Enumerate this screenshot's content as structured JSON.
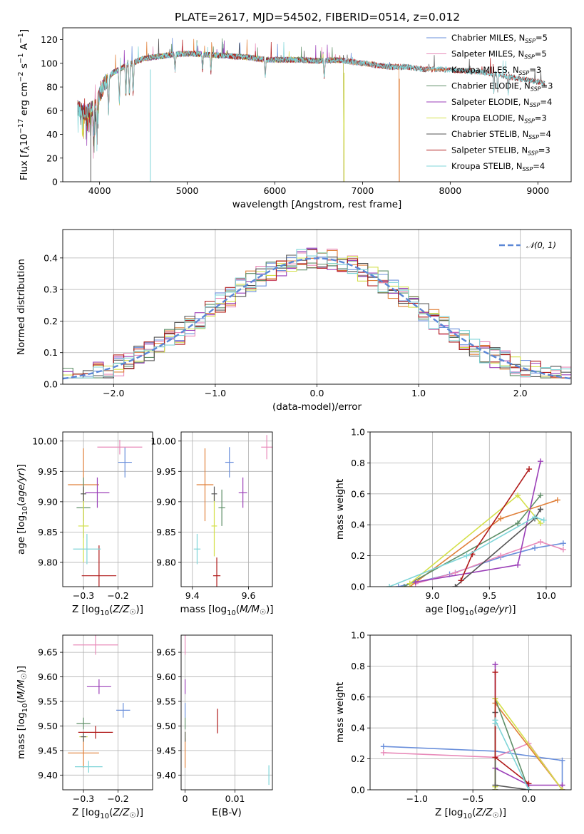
{
  "figure": {
    "title": "PLATE=2617, MJD=54502, FIBERID=0514, z=0.012"
  },
  "chart_data": [
    {
      "id": "spectrum",
      "type": "line",
      "title": "PLATE=2617, MJD=54502, FIBERID=0514, z=0.012",
      "xlabel": "wavelength [Angstrom, rest frame]",
      "ylabel": "Flux [fλ10⁻¹⁷ erg cm⁻² s⁻¹ A⁻¹]",
      "xlim": [
        3580,
        9380
      ],
      "ylim": [
        0,
        130
      ],
      "xticks": [
        4000,
        5000,
        6000,
        7000,
        8000,
        9000
      ],
      "yticks": [
        0,
        20,
        40,
        60,
        80,
        100,
        120
      ],
      "grid": false,
      "legend_position": "top-right",
      "continuum": {
        "x": [
          3750,
          3850,
          3950,
          4050,
          4150,
          4300,
          4500,
          4700,
          4900,
          5100,
          5300,
          5500,
          5700,
          5900,
          6100,
          6300,
          6500,
          6700,
          6900,
          7100,
          7300,
          7500,
          7700,
          7900,
          8100,
          8300,
          8500,
          8700,
          8900,
          9080
        ],
        "y": [
          62,
          58,
          64,
          82,
          92,
          98,
          104,
          106,
          108,
          108,
          107,
          106,
          105,
          103,
          103,
          103,
          102,
          103,
          101,
          99,
          97,
          97,
          95,
          95,
          94,
          93,
          91,
          88,
          86,
          83
        ]
      },
      "series": [
        {
          "name": "Chabrier MILES, N$_{SSP}$=5",
          "color": "#6a8fdb",
          "xmax": 7400,
          "drop_x": null
        },
        {
          "name": "Salpeter MILES, N$_{SSP}$=5",
          "color": "#e88ab9",
          "xmax": 7400,
          "drop_x": null
        },
        {
          "name": "Kroupa MILES, N$_{SSP}$=3",
          "color": "#e0803a",
          "xmax": 7420,
          "drop_x": 7415
        },
        {
          "name": "Chabrier ELODIE, N$_{SSP}$=3",
          "color": "#5f8f68",
          "xmax": 6790,
          "drop_x": 6785
        },
        {
          "name": "Salpeter ELODIE, N$_{SSP}$=4",
          "color": "#9b3fb8",
          "xmax": 6790,
          "drop_x": 6785
        },
        {
          "name": "Kroupa ELODIE, N$_{SSP}$=3",
          "color": "#d4e04a",
          "xmax": 6790,
          "drop_x": 6785
        },
        {
          "name": "Chabrier STELIB, N$_{SSP}$=4",
          "color": "#555555",
          "xmax": 9080,
          "drop_x": null
        },
        {
          "name": "Salpeter STELIB, N$_{SSP}$=3",
          "color": "#b01a1a",
          "xmax": 9080,
          "drop_x": null
        },
        {
          "name": "Kroupa STELIB, N$_{SSP}$=4",
          "color": "#7fd5d8",
          "xmax": 9080,
          "drop_x": null
        }
      ],
      "drops_to_zero_at": [
        3900,
        4580,
        6790,
        7420
      ]
    },
    {
      "id": "residuals",
      "type": "histogram",
      "xlabel": "(data-model)/error",
      "ylabel": "Normed distribution",
      "xlim": [
        -2.5,
        2.5
      ],
      "ylim": [
        0,
        0.49
      ],
      "xticks": [
        -2,
        -1,
        0,
        1,
        2
      ],
      "yticks": [
        0.0,
        0.1,
        0.2,
        0.3,
        0.4
      ],
      "grid": true,
      "legend": "N(0,1)",
      "legend_position": "top-right",
      "reference": {
        "name": "N(0,1)",
        "mean": 0,
        "sigma": 1,
        "color": "#5b87d6",
        "style": "dashed"
      },
      "series_colors": [
        "#6a8fdb",
        "#e88ab9",
        "#e0803a",
        "#5f8f68",
        "#9b3fb8",
        "#d4e04a",
        "#555555",
        "#b01a1a",
        "#7fd5d8"
      ]
    },
    {
      "id": "age_vs_Z",
      "type": "scatter",
      "xlabel": "Z [log10(Z/Z☉)]",
      "ylabel": "age  [log10(age/yr)]",
      "xlim": [
        -0.36,
        -0.1
      ],
      "ylim": [
        9.76,
        10.015
      ],
      "xticks": [
        -0.3,
        -0.2
      ],
      "yticks": [
        9.8,
        9.85,
        9.9,
        9.95,
        10.0
      ],
      "grid": true,
      "points": [
        {
          "x": -0.18,
          "y": 9.965,
          "xerr": 0.02,
          "yerr": 0.025,
          "color": "#6a8fdb"
        },
        {
          "x": -0.195,
          "y": 9.99,
          "xerr": 0.065,
          "yerr": 0.012,
          "color": "#e88ab9"
        },
        {
          "x": -0.3,
          "y": 9.928,
          "xerr": 0.045,
          "yerr": 0.06,
          "color": "#e0803a"
        },
        {
          "x": -0.3,
          "y": 9.89,
          "xerr": 0.02,
          "yerr": 0.05,
          "color": "#5f8f68"
        },
        {
          "x": -0.26,
          "y": 9.915,
          "xerr": 0.035,
          "yerr": 0.025,
          "color": "#9b3fb8"
        },
        {
          "x": -0.3,
          "y": 9.86,
          "xerr": 0.015,
          "yerr": 0.06,
          "color": "#d4e04a"
        },
        {
          "x": -0.3,
          "y": 9.913,
          "xerr": 0.008,
          "yerr": 0.012,
          "color": "#555555"
        },
        {
          "x": -0.255,
          "y": 9.778,
          "xerr": 0.05,
          "yerr": 0.05,
          "color": "#b01a1a"
        },
        {
          "x": -0.29,
          "y": 9.822,
          "xerr": 0.04,
          "yerr": 0.025,
          "color": "#7fd5d8"
        }
      ]
    },
    {
      "id": "age_vs_mass",
      "type": "scatter",
      "xlabel": "mass [log10(M/M☉)]",
      "ylabel": "",
      "xlim": [
        9.36,
        9.685
      ],
      "ylim": [
        9.76,
        10.015
      ],
      "xticks": [
        9.4,
        9.6
      ],
      "yticks": [
        9.8,
        9.85,
        9.9,
        9.95,
        10.0
      ],
      "grid": true,
      "points": [
        {
          "x": 9.532,
          "y": 9.965,
          "xerr": 0.015,
          "yerr": 0.025,
          "color": "#6a8fdb"
        },
        {
          "x": 9.665,
          "y": 9.99,
          "xerr": 0.02,
          "yerr": 0.02,
          "color": "#e88ab9"
        },
        {
          "x": 9.445,
          "y": 9.928,
          "xerr": 0.03,
          "yerr": 0.06,
          "color": "#e0803a"
        },
        {
          "x": 9.505,
          "y": 9.89,
          "xerr": 0.012,
          "yerr": 0.03,
          "color": "#5f8f68"
        },
        {
          "x": 9.58,
          "y": 9.915,
          "xerr": 0.015,
          "yerr": 0.025,
          "color": "#9b3fb8"
        },
        {
          "x": 9.478,
          "y": 9.86,
          "xerr": 0.01,
          "yerr": 0.05,
          "color": "#d4e04a"
        },
        {
          "x": 9.478,
          "y": 9.913,
          "xerr": 0.01,
          "yerr": 0.012,
          "color": "#555555"
        },
        {
          "x": 9.487,
          "y": 9.778,
          "xerr": 0.013,
          "yerr": 0.03,
          "color": "#b01a1a"
        },
        {
          "x": 9.417,
          "y": 9.822,
          "xerr": 0.012,
          "yerr": 0.025,
          "color": "#7fd5d8"
        }
      ]
    },
    {
      "id": "weight_vs_age",
      "type": "line",
      "xlabel": "age  [log10(age/yr)]",
      "ylabel": "mass weight",
      "xlim": [
        8.45,
        10.22
      ],
      "ylim": [
        0,
        1.0
      ],
      "xticks": [
        9.0,
        9.5,
        10.0
      ],
      "yticks": [
        0.0,
        0.2,
        0.4,
        0.6,
        0.8,
        1.0
      ],
      "grid": true,
      "series": [
        {
          "color": "#6a8fdb",
          "x": [
            8.7,
            9.15,
            9.6,
            9.9,
            10.15
          ],
          "y": [
            0.0,
            0.08,
            0.19,
            0.25,
            0.28
          ]
        },
        {
          "color": "#e88ab9",
          "x": [
            8.85,
            9.2,
            9.6,
            9.95,
            10.15
          ],
          "y": [
            0.02,
            0.09,
            0.2,
            0.29,
            0.24
          ]
        },
        {
          "color": "#e0803a",
          "x": [
            8.8,
            9.6,
            10.1
          ],
          "y": [
            0.0,
            0.44,
            0.56
          ]
        },
        {
          "color": "#5f8f68",
          "x": [
            8.75,
            9.75,
            9.95
          ],
          "y": [
            0.0,
            0.41,
            0.59
          ]
        },
        {
          "color": "#9b3fb8",
          "x": [
            8.85,
            9.75,
            9.95
          ],
          "y": [
            0.03,
            0.14,
            0.81
          ]
        },
        {
          "color": "#d4e04a",
          "x": [
            8.8,
            9.75,
            9.95
          ],
          "y": [
            0.02,
            0.59,
            0.41
          ]
        },
        {
          "color": "#555555",
          "x": [
            9.2,
            9.9,
            9.95,
            9.95
          ],
          "y": [
            0.0,
            0.44,
            0.5,
            0.5
          ]
        },
        {
          "color": "#b01a1a",
          "x": [
            9.25,
            9.35,
            9.85
          ],
          "y": [
            0.04,
            0.21,
            0.76
          ]
        },
        {
          "color": "#7fd5d8",
          "x": [
            8.62,
            9.3,
            9.9,
            9.98
          ],
          "y": [
            0.0,
            0.2,
            0.45,
            0.43
          ]
        }
      ]
    },
    {
      "id": "mass_vs_Z",
      "type": "scatter",
      "xlabel": "Z [log10(Z/Z☉)]",
      "ylabel": "mass [log10(M/M☉)]",
      "xlim": [
        -0.36,
        -0.1
      ],
      "ylim": [
        9.37,
        9.685
      ],
      "xticks": [
        -0.3,
        -0.2
      ],
      "yticks": [
        9.4,
        9.45,
        9.5,
        9.55,
        9.6,
        9.65
      ],
      "grid": true,
      "points": [
        {
          "x": -0.185,
          "y": 9.532,
          "xerr": 0.02,
          "yerr": 0.015,
          "color": "#6a8fdb"
        },
        {
          "x": -0.265,
          "y": 9.665,
          "xerr": 0.065,
          "yerr": 0.02,
          "color": "#e88ab9"
        },
        {
          "x": -0.3,
          "y": 9.445,
          "xerr": 0.045,
          "yerr": 0.03,
          "color": "#e0803a"
        },
        {
          "x": -0.3,
          "y": 9.505,
          "xerr": 0.02,
          "yerr": 0.012,
          "color": "#5f8f68"
        },
        {
          "x": -0.255,
          "y": 9.58,
          "xerr": 0.035,
          "yerr": 0.015,
          "color": "#9b3fb8"
        },
        {
          "x": -0.3,
          "y": 9.478,
          "xerr": 0.012,
          "yerr": 0.01,
          "color": "#d4e04a"
        },
        {
          "x": -0.3,
          "y": 9.478,
          "xerr": 0.008,
          "yerr": 0.01,
          "color": "#555555"
        },
        {
          "x": -0.265,
          "y": 9.487,
          "xerr": 0.05,
          "yerr": 0.013,
          "color": "#b01a1a"
        },
        {
          "x": -0.285,
          "y": 9.417,
          "xerr": 0.04,
          "yerr": 0.012,
          "color": "#7fd5d8"
        }
      ]
    },
    {
      "id": "mass_vs_EBV",
      "type": "scatter",
      "xlabel": "E(B-V)",
      "ylabel": "",
      "xlim": [
        -0.0008,
        0.0175
      ],
      "ylim": [
        9.37,
        9.685
      ],
      "xticks": [
        0.0,
        0.01
      ],
      "yticks": [
        9.4,
        9.45,
        9.5,
        9.55,
        9.6,
        9.65
      ],
      "grid": true,
      "points": [
        {
          "x": 0.0,
          "y": 9.532,
          "xerr": 0.0,
          "yerr": 0.015,
          "color": "#6a8fdb"
        },
        {
          "x": 0.0,
          "y": 9.665,
          "xerr": 0.0,
          "yerr": 0.02,
          "color": "#e88ab9"
        },
        {
          "x": 0.0,
          "y": 9.445,
          "xerr": 0.0,
          "yerr": 0.03,
          "color": "#e0803a"
        },
        {
          "x": 0.0,
          "y": 9.505,
          "xerr": 0.0,
          "yerr": 0.012,
          "color": "#5f8f68"
        },
        {
          "x": 0.0,
          "y": 9.58,
          "xerr": 0.0,
          "yerr": 0.015,
          "color": "#9b3fb8"
        },
        {
          "x": 0.0,
          "y": 9.478,
          "xerr": 0.0,
          "yerr": 0.01,
          "color": "#d4e04a"
        },
        {
          "x": 0.0,
          "y": 9.478,
          "xerr": 0.0,
          "yerr": 0.01,
          "color": "#555555"
        },
        {
          "x": 0.0065,
          "y": 9.51,
          "xerr": 0.0,
          "yerr": 0.025,
          "color": "#b01a1a"
        },
        {
          "x": 0.0168,
          "y": 9.4,
          "xerr": 0.0,
          "yerr": 0.02,
          "color": "#7fd5d8"
        }
      ]
    },
    {
      "id": "weight_vs_Z",
      "type": "line",
      "xlabel": "Z [log10(Z/Z☉)]",
      "ylabel": "mass weight",
      "xlim": [
        -1.42,
        0.38
      ],
      "ylim": [
        0,
        1.0
      ],
      "xticks": [
        -1.0,
        -0.5,
        0.0
      ],
      "yticks": [
        0.0,
        0.2,
        0.4,
        0.6,
        0.8,
        1.0
      ],
      "grid": true,
      "series": [
        {
          "color": "#6a8fdb",
          "x": [
            -1.3,
            -0.3,
            0.3,
            0.3
          ],
          "y": [
            0.28,
            0.25,
            0.19,
            0.0
          ]
        },
        {
          "color": "#e88ab9",
          "x": [
            -1.3,
            -0.3,
            0.0,
            0.3
          ],
          "y": [
            0.24,
            0.21,
            0.3,
            0.0
          ]
        },
        {
          "color": "#e0803a",
          "x": [
            -0.3,
            -0.3,
            0.3
          ],
          "y": [
            0.0,
            0.56,
            0.0
          ]
        },
        {
          "color": "#5f8f68",
          "x": [
            -0.3,
            -0.3,
            0.0
          ],
          "y": [
            0.0,
            0.59,
            0.0
          ]
        },
        {
          "color": "#9b3fb8",
          "x": [
            -0.3,
            -0.3,
            0.0,
            0.3,
            0.3
          ],
          "y": [
            0.81,
            0.14,
            0.03,
            0.03,
            0.0
          ]
        },
        {
          "color": "#d4e04a",
          "x": [
            -0.3,
            -0.3,
            0.3
          ],
          "y": [
            0.02,
            0.59,
            0.0
          ]
        },
        {
          "color": "#555555",
          "x": [
            -0.3,
            -0.3,
            0.0,
            0.0
          ],
          "y": [
            0.5,
            0.03,
            0.0,
            0.0
          ]
        },
        {
          "color": "#b01a1a",
          "x": [
            -0.3,
            -0.3,
            0.0
          ],
          "y": [
            0.76,
            0.21,
            0.04
          ]
        },
        {
          "color": "#7fd5d8",
          "x": [
            -0.3,
            -0.3,
            0.0
          ],
          "y": [
            0.43,
            0.45,
            0.0
          ]
        }
      ]
    }
  ]
}
